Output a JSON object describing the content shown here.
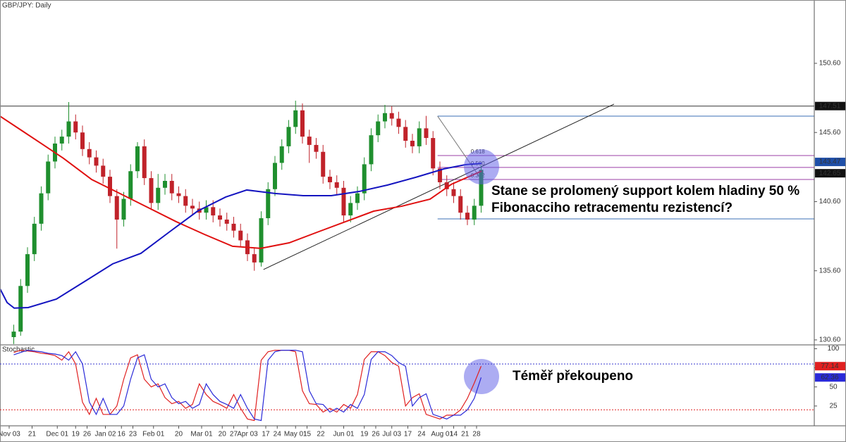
{
  "chart_data": {
    "type": "candlestick",
    "title": "GBP/JPY: Daily",
    "up_color": "#1f8f2e",
    "down_color": "#c0222a",
    "xlim": [
      -6,
      349.4
    ],
    "ylim": [
      130.24,
      155.18
    ],
    "yticks": [
      {
        "value": 130.6,
        "label": "130.60"
      },
      {
        "value": 135.6,
        "label": "135.60"
      },
      {
        "value": 140.6,
        "label": "140.60"
      },
      {
        "value": 145.6,
        "label": "145.60"
      },
      {
        "value": 150.6,
        "label": "150.60"
      }
    ],
    "xticks": [
      {
        "value": -2,
        "label": "Nov 03"
      },
      {
        "value": 8,
        "label": "21"
      },
      {
        "value": 19,
        "label": "Dec 01"
      },
      {
        "value": 27,
        "label": "19"
      },
      {
        "value": 32,
        "label": "26"
      },
      {
        "value": 40,
        "label": "Jan 02"
      },
      {
        "value": 47,
        "label": "16"
      },
      {
        "value": 52,
        "label": "23"
      },
      {
        "value": 61,
        "label": "Feb 01"
      },
      {
        "value": 72,
        "label": "20"
      },
      {
        "value": 82,
        "label": "Mar 01"
      },
      {
        "value": 91,
        "label": "20"
      },
      {
        "value": 96,
        "label": "27"
      },
      {
        "value": 102,
        "label": "Apr 03"
      },
      {
        "value": 110,
        "label": "17"
      },
      {
        "value": 115,
        "label": "24"
      },
      {
        "value": 123,
        "label": "May 01"
      },
      {
        "value": 128,
        "label": "15"
      },
      {
        "value": 134,
        "label": "22"
      },
      {
        "value": 144,
        "label": "Jun 01"
      },
      {
        "value": 153,
        "label": "19"
      },
      {
        "value": 158,
        "label": "26"
      },
      {
        "value": 165,
        "label": "Jul 03"
      },
      {
        "value": 172,
        "label": "17"
      },
      {
        "value": 178,
        "label": "24"
      },
      {
        "value": 187,
        "label": "Aug 01"
      },
      {
        "value": 192,
        "label": "14"
      },
      {
        "value": 197,
        "label": "21"
      },
      {
        "value": 202,
        "label": "28"
      }
    ],
    "x": [
      0,
      3,
      6,
      9,
      12,
      15,
      18,
      21,
      24,
      27,
      30,
      33,
      36,
      39,
      42,
      45,
      48,
      51,
      54,
      57,
      60,
      63,
      66,
      69,
      72,
      75,
      78,
      81,
      84,
      87,
      90,
      93,
      96,
      99,
      102,
      105,
      108,
      111,
      114,
      117,
      120,
      123,
      126,
      129,
      132,
      135,
      138,
      141,
      144,
      147,
      150,
      153,
      156,
      159,
      162,
      165,
      168,
      171,
      174,
      177,
      180,
      183,
      186,
      189,
      192,
      195,
      198,
      201,
      204
    ],
    "candles": [
      [
        130.8,
        131.7,
        130.3,
        131.2
      ],
      [
        131.2,
        135.0,
        130.9,
        134.5
      ],
      [
        134.5,
        137.3,
        134.0,
        136.8
      ],
      [
        136.8,
        139.5,
        136.3,
        139.0
      ],
      [
        139.0,
        141.7,
        138.5,
        141.2
      ],
      [
        141.2,
        144.0,
        140.7,
        143.5
      ],
      [
        143.5,
        145.3,
        143.0,
        144.8
      ],
      [
        144.8,
        145.8,
        144.3,
        145.3
      ],
      [
        145.3,
        147.8,
        144.8,
        146.4
      ],
      [
        146.4,
        146.9,
        145.1,
        145.6
      ],
      [
        145.6,
        146.1,
        143.9,
        144.4
      ],
      [
        144.4,
        144.9,
        143.3,
        143.8
      ],
      [
        143.8,
        144.3,
        142.7,
        143.2
      ],
      [
        143.2,
        143.7,
        141.9,
        142.4
      ],
      [
        142.4,
        142.9,
        140.5,
        141.0
      ],
      [
        141.0,
        141.5,
        137.2,
        139.3
      ],
      [
        139.3,
        141.3,
        138.8,
        140.8
      ],
      [
        140.8,
        143.3,
        140.3,
        142.8
      ],
      [
        142.8,
        144.9,
        142.3,
        144.6
      ],
      [
        144.6,
        145.1,
        141.8,
        142.3
      ],
      [
        142.3,
        142.8,
        140.0,
        140.5
      ],
      [
        140.5,
        142.6,
        140.0,
        141.6
      ],
      [
        141.6,
        142.6,
        141.1,
        142.1
      ],
      [
        142.1,
        142.6,
        140.7,
        141.2
      ],
      [
        141.2,
        141.7,
        140.5,
        141.0
      ],
      [
        141.0,
        141.5,
        139.8,
        140.3
      ],
      [
        140.3,
        140.8,
        139.6,
        140.1
      ],
      [
        140.1,
        140.6,
        139.3,
        139.8
      ],
      [
        139.8,
        140.7,
        139.3,
        140.2
      ],
      [
        140.2,
        140.7,
        139.1,
        139.6
      ],
      [
        139.6,
        140.1,
        138.8,
        139.3
      ],
      [
        139.3,
        139.8,
        138.5,
        139.0
      ],
      [
        139.0,
        139.5,
        138.0,
        138.5
      ],
      [
        138.5,
        139.0,
        137.3,
        137.8
      ],
      [
        137.8,
        138.3,
        136.3,
        136.8
      ],
      [
        136.8,
        137.3,
        135.6,
        136.2
      ],
      [
        136.2,
        139.9,
        135.9,
        139.4
      ],
      [
        139.4,
        142.0,
        138.9,
        141.5
      ],
      [
        141.5,
        143.9,
        141.0,
        143.4
      ],
      [
        143.4,
        145.1,
        142.9,
        144.6
      ],
      [
        144.6,
        146.5,
        144.1,
        146.0
      ],
      [
        146.0,
        147.9,
        145.5,
        147.2
      ],
      [
        147.2,
        147.7,
        144.8,
        145.3
      ],
      [
        145.3,
        145.8,
        143.4,
        144.7
      ],
      [
        144.7,
        145.2,
        143.7,
        144.2
      ],
      [
        144.2,
        144.7,
        141.9,
        142.4
      ],
      [
        142.4,
        142.9,
        141.5,
        142.0
      ],
      [
        142.0,
        142.5,
        141.1,
        141.6
      ],
      [
        141.6,
        142.1,
        139.1,
        139.6
      ],
      [
        139.6,
        141.0,
        139.1,
        140.5
      ],
      [
        140.5,
        141.7,
        140.0,
        141.2
      ],
      [
        141.2,
        143.8,
        140.7,
        143.3
      ],
      [
        143.3,
        145.9,
        142.8,
        145.4
      ],
      [
        145.4,
        146.9,
        144.9,
        146.4
      ],
      [
        146.4,
        147.6,
        145.9,
        147.0
      ],
      [
        147.0,
        147.5,
        146.1,
        146.6
      ],
      [
        146.6,
        147.1,
        145.5,
        146.0
      ],
      [
        146.0,
        146.5,
        144.5,
        145.0
      ],
      [
        145.0,
        145.5,
        144.1,
        144.6
      ],
      [
        144.6,
        146.4,
        144.1,
        145.9
      ],
      [
        145.9,
        146.8,
        144.7,
        145.2
      ],
      [
        145.2,
        145.7,
        142.5,
        143.0
      ],
      [
        143.0,
        143.5,
        141.5,
        142.0
      ],
      [
        142.0,
        142.5,
        141.0,
        141.5
      ],
      [
        141.5,
        142.0,
        140.5,
        141.0
      ],
      [
        141.0,
        141.5,
        139.3,
        139.8
      ],
      [
        139.8,
        140.3,
        138.9,
        139.3
      ],
      [
        139.3,
        140.8,
        138.9,
        140.3
      ],
      [
        140.3,
        143.2,
        139.8,
        142.9
      ]
    ],
    "moving_averages": [
      {
        "color": "#e01010",
        "x": [
          -6,
          3.2,
          12.5,
          21.7,
          34,
          46.3,
          58.6,
          70.9,
          83.2,
          95.5,
          107.8,
          120.2,
          132.5,
          144.8,
          157.1,
          169.4,
          181.7,
          191,
          204.2
        ],
        "values": [
          146.78,
          145.77,
          144.75,
          143.73,
          142.2,
          141.19,
          140.17,
          139.15,
          138.23,
          137.37,
          137.22,
          137.62,
          138.39,
          139.15,
          139.91,
          140.27,
          140.78,
          141.85,
          142.81
        ]
      },
      {
        "color": "#1414c0",
        "x": [
          -6,
          -2.9,
          0.2,
          6.3,
          18.6,
          30.9,
          43.2,
          55.5,
          67.8,
          80.2,
          92.5,
          101.7,
          114,
          126.3,
          138.6,
          150.9,
          163.2,
          175.5,
          187.8,
          197.1,
          204.2
        ],
        "values": [
          134.3,
          133.3,
          132.9,
          132.94,
          133.55,
          134.82,
          136.1,
          136.86,
          138.39,
          139.91,
          140.93,
          141.44,
          141.19,
          141.03,
          141.03,
          141.34,
          141.8,
          142.36,
          142.97,
          143.27,
          143.37
        ]
      }
    ],
    "hlines": [
      {
        "value": 147.51,
        "from": -6,
        "color": "#333333"
      },
      {
        "value": 146.78,
        "from": 185,
        "color": "#3b6fb6"
      },
      {
        "value": 139.35,
        "from": 185,
        "color": "#3b6fb6"
      }
    ],
    "trendlines": [
      {
        "x": [
          109,
          262
        ],
        "y": [
          135.69,
          147.65
        ],
        "color": "#222222"
      },
      {
        "x": [
          185,
          203
        ],
        "y": [
          146.78,
          142.46
        ],
        "color": "#777777"
      }
    ],
    "fib_from": 185,
    "fib_color": "#9b3fa6",
    "fib_levels": [
      {
        "label": "0.618",
        "value": 143.93
      },
      {
        "label": "0.500",
        "value": 143.07
      },
      {
        "label": "0.382",
        "value": 142.2
      }
    ],
    "price_labels": [
      {
        "value": 147.51,
        "color": "#111111"
      },
      {
        "value": 143.47,
        "color": "#1f4fa8"
      },
      {
        "value": 142.65,
        "color": "#111111"
      }
    ],
    "annotations": [
      {
        "lines": [
          "Stane se prolomený support kolem hladiny 50 %",
          "Fibonacciho retracementu rezistencí?"
        ]
      }
    ],
    "stochastic": {
      "title": "Stochastic",
      "ylim": [
        0,
        105
      ],
      "yticks": [
        25,
        50,
        75,
        100
      ],
      "levels": [
        {
          "value": 80,
          "color": "#3a3ad0"
        },
        {
          "value": 20,
          "color": "#e02020"
        }
      ],
      "series": [
        {
          "color": "#e02020",
          "values": [
            95,
            98,
            97,
            96,
            94,
            93,
            91,
            85,
            96,
            80,
            30,
            14,
            35,
            14,
            14,
            25,
            60,
            88,
            92,
            60,
            50,
            54,
            36,
            28,
            31,
            22,
            27,
            54,
            40,
            31,
            27,
            22,
            40,
            22,
            8,
            6,
            85,
            96,
            98,
            98,
            98,
            96,
            45,
            28,
            27,
            17,
            22,
            17,
            27,
            22,
            40,
            86,
            96,
            96,
            91,
            82,
            77,
            25,
            36,
            41,
            14,
            11,
            8,
            13,
            13,
            20,
            35,
            55,
            77.14
          ]
        },
        {
          "color": "#2a2ad8",
          "values": [
            92,
            95,
            98,
            97,
            96,
            94,
            93,
            91,
            85,
            96,
            80,
            30,
            14,
            35,
            14,
            14,
            25,
            60,
            88,
            92,
            60,
            50,
            54,
            36,
            28,
            31,
            22,
            27,
            54,
            40,
            31,
            27,
            22,
            40,
            22,
            8,
            6,
            85,
            96,
            98,
            98,
            98,
            96,
            45,
            28,
            27,
            17,
            22,
            17,
            27,
            22,
            40,
            86,
            96,
            96,
            91,
            82,
            77,
            25,
            36,
            41,
            14,
            11,
            8,
            13,
            13,
            20,
            35,
            62.36
          ]
        }
      ],
      "annotation": "Téměř překoupeno"
    }
  }
}
